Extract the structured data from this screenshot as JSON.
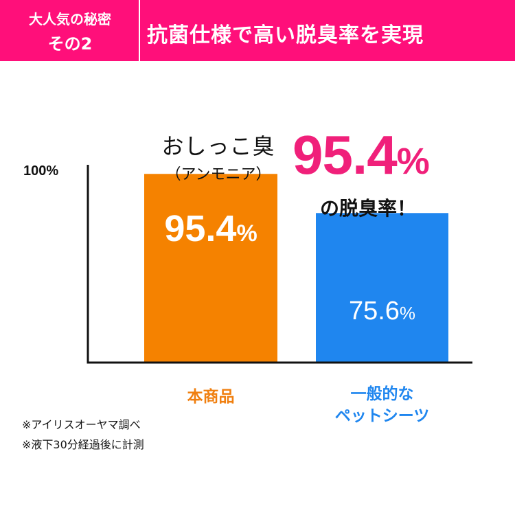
{
  "header": {
    "badge_line1": "大人気の秘密",
    "badge_line2": "その2",
    "title": "抗菌仕様で高い脱臭率を実現",
    "accent_color": "#ff0f7a"
  },
  "callout": {
    "ammonia_line1": "おしっこ臭",
    "ammonia_line2": "（アンモニア）",
    "big_value_number": "95.4",
    "big_value_unit": "%",
    "big_value_color": "#f0207a",
    "deodorization_text": "の脱臭率！"
  },
  "chart_data": {
    "type": "bar",
    "categories": [
      "本商品",
      "一般的な ペットシーツ"
    ],
    "values": [
      95.4,
      75.6
    ],
    "unit": "%",
    "ylim": [
      0,
      100
    ],
    "ytick_top_label": "100%",
    "colors": [
      "#f58200",
      "#1f86ef"
    ],
    "value_labels": [
      {
        "number": "95.4",
        "unit": "%"
      },
      {
        "number": "75.6",
        "unit": "%"
      }
    ],
    "category_labels": [
      {
        "line1": "本商品",
        "line2": ""
      },
      {
        "line1": "一般的な",
        "line2": "ペットシーツ"
      }
    ],
    "grid": false,
    "legend": "none"
  },
  "notes": [
    "※アイリスオーヤマ調べ",
    "※液下30分経過後に計測"
  ]
}
